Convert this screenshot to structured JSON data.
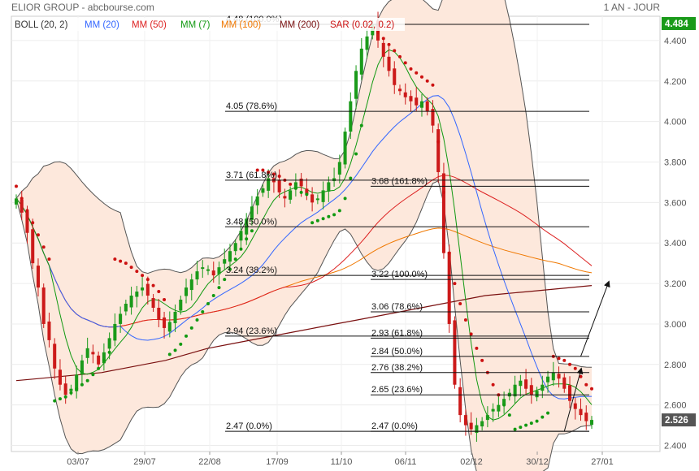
{
  "header": {
    "title": "ELIOR GROUP - abcbourse.com",
    "period": "1 AN - JOUR"
  },
  "legend": [
    {
      "label": "BOLL (20, 2)",
      "color": "#333333"
    },
    {
      "label": "MM (20)",
      "color": "#3366ff"
    },
    {
      "label": "MM (50)",
      "color": "#dd2222"
    },
    {
      "label": "MM (7)",
      "color": "#119911"
    },
    {
      "label": "MM (100)",
      "color": "#f07800"
    },
    {
      "label": "MM (200)",
      "color": "#7a1010"
    },
    {
      "label": "SAR (0.02, 0.2)",
      "color": "#cc1111"
    }
  ],
  "colors": {
    "up": "#1a9a1a",
    "down": "#cc1a1a",
    "band_fill": "#fde8dc",
    "band_line": "#555555",
    "last_price_bg": "#1a9a1a",
    "current_price_bg": "#555555"
  },
  "chart_data": {
    "type": "candlestick",
    "x_ticks": [
      "03/07",
      "29/07",
      "22/08",
      "17/09",
      "11/10",
      "06/11",
      "02/12",
      "30/12",
      "27/01"
    ],
    "y_ticks": [
      "2.400",
      "2.600",
      "2.800",
      "3.000",
      "3.200",
      "3.400",
      "3.600",
      "3.800",
      "4.000",
      "4.200",
      "4.400"
    ],
    "ylim": [
      2.37,
      4.52
    ],
    "price_labels": [
      {
        "value": 4.484,
        "label": "4.484",
        "style": "last"
      },
      {
        "value": 2.526,
        "label": "2.526",
        "style": "current"
      }
    ],
    "fib_levels": [
      {
        "price": 4.48,
        "label": "4.48  (100.0%)",
        "group": "left"
      },
      {
        "price": 4.05,
        "label": "4.05  (78.6%)",
        "group": "left"
      },
      {
        "price": 3.71,
        "label": "3.71  (61.8%)",
        "group": "left"
      },
      {
        "price": 3.48,
        "label": "3.48  (50.0%)",
        "group": "left"
      },
      {
        "price": 3.24,
        "label": "3.24  (38.2%)",
        "group": "left"
      },
      {
        "price": 2.94,
        "label": "2.94  (23.6%)",
        "group": "left"
      },
      {
        "price": 2.47,
        "label": "2.47  (0.0%)",
        "group": "left"
      },
      {
        "price": 3.68,
        "label": "3.68  (161.8%)",
        "group": "right"
      },
      {
        "price": 3.22,
        "label": "3.22  (100.0%)",
        "group": "right"
      },
      {
        "price": 3.06,
        "label": "3.06  (78.6%)",
        "group": "right"
      },
      {
        "price": 2.93,
        "label": "2.93  (61.8%)",
        "group": "right"
      },
      {
        "price": 2.84,
        "label": "2.84  (50.0%)",
        "group": "right"
      },
      {
        "price": 2.76,
        "label": "2.76  (38.2%)",
        "group": "right"
      },
      {
        "price": 2.65,
        "label": "2.65  (23.6%)",
        "group": "right"
      },
      {
        "price": 2.47,
        "label": "2.47  (0.0%)",
        "group": "right"
      }
    ],
    "closes": [
      3.62,
      3.55,
      3.45,
      3.3,
      3.18,
      3.0,
      2.92,
      2.78,
      2.7,
      2.65,
      2.68,
      2.75,
      2.82,
      2.88,
      2.85,
      2.8,
      2.86,
      2.93,
      3.0,
      3.05,
      3.1,
      3.14,
      3.16,
      3.18,
      3.14,
      3.08,
      3.02,
      2.98,
      3.01,
      3.06,
      3.12,
      3.18,
      3.22,
      3.26,
      3.28,
      3.27,
      3.24,
      3.28,
      3.32,
      3.36,
      3.4,
      3.46,
      3.52,
      3.58,
      3.63,
      3.67,
      3.72,
      3.7,
      3.65,
      3.62,
      3.66,
      3.7,
      3.68,
      3.64,
      3.6,
      3.62,
      3.66,
      3.7,
      3.72,
      3.8,
      3.95,
      4.1,
      4.25,
      4.36,
      4.42,
      4.48,
      4.4,
      4.32,
      4.25,
      4.18,
      4.15,
      4.12,
      4.1,
      4.08,
      4.1,
      4.05,
      3.98,
      3.75,
      3.35,
      3.0,
      2.7,
      2.55,
      2.5,
      2.48,
      2.5,
      2.52,
      2.55,
      2.58,
      2.6,
      2.63,
      2.66,
      2.7,
      2.72,
      2.68,
      2.65,
      2.67,
      2.7,
      2.74,
      2.76,
      2.73,
      2.68,
      2.62,
      2.58,
      2.55,
      2.52,
      2.526
    ],
    "sar_points": [
      3.68,
      3.62,
      3.56,
      3.5,
      3.44,
      3.38,
      3.32,
      2.62,
      2.63,
      2.64,
      2.66,
      2.68,
      2.7,
      2.72,
      2.75,
      2.78,
      2.82,
      2.86,
      3.32,
      3.31,
      3.3,
      3.28,
      3.26,
      3.24,
      3.22,
      3.19,
      3.16,
      3.12,
      2.85,
      2.87,
      2.9,
      2.94,
      2.98,
      3.02,
      3.06,
      3.1,
      3.14,
      3.18,
      3.22,
      3.27,
      3.32,
      3.37,
      3.42,
      3.46,
      3.76,
      3.76,
      3.75,
      3.74,
      3.73,
      3.71,
      3.69,
      3.67,
      3.65,
      3.64,
      3.5,
      3.51,
      3.52,
      3.53,
      3.54,
      3.56,
      3.62,
      3.72,
      3.84,
      3.98,
      4.48,
      4.46,
      4.44,
      4.41,
      4.38,
      4.35,
      4.32,
      4.29,
      4.26,
      4.24,
      4.22,
      4.2,
      4.18,
      3.9,
      3.65,
      3.35,
      3.2,
      3.1,
      3.02,
      2.95,
      2.88,
      2.82,
      2.76,
      2.7,
      2.65,
      2.6,
      2.55,
      2.48,
      2.49,
      2.5,
      2.51,
      2.52,
      2.54,
      2.56,
      2.84,
      2.83,
      2.82,
      2.8,
      2.78,
      2.74,
      2.7,
      2.68
    ],
    "ma200": [
      2.72,
      2.73,
      2.74,
      2.75,
      2.76,
      2.78,
      2.8,
      2.82,
      2.85,
      2.88,
      2.9,
      2.92,
      2.94,
      2.96,
      2.98,
      3.0,
      3.02,
      3.04,
      3.06,
      3.08,
      3.1,
      3.12,
      3.14,
      3.15,
      3.16,
      3.17,
      3.18,
      3.19
    ],
    "arrows": [
      {
        "label": "",
        "from": [
          100,
          2.47
        ],
        "to": [
          103,
          2.77
        ]
      },
      {
        "label": "",
        "from": [
          103,
          2.84
        ],
        "to": [
          108,
          3.2
        ]
      }
    ]
  }
}
